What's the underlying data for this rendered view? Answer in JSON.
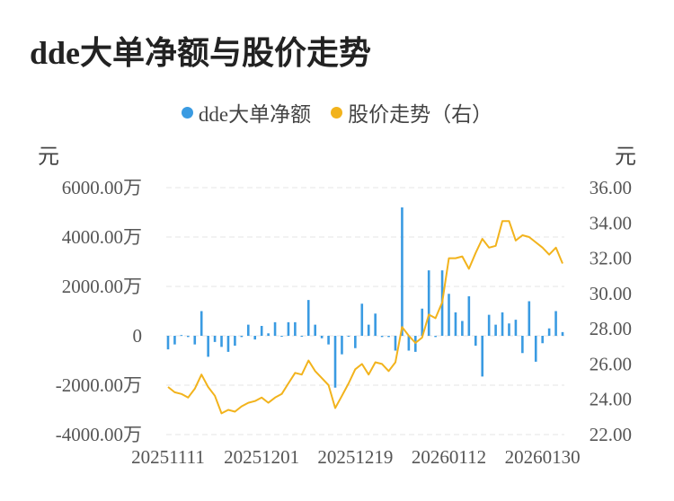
{
  "title": "dde大单净额与股价走势",
  "chart_data": {
    "type": "bar+line",
    "legend_position": "top",
    "grid": true,
    "colors": {
      "dde": "#3a9be2",
      "price": "#f2b31c",
      "grid": "#e4e4e4"
    },
    "left_axis": {
      "unit": "元",
      "ylim": [
        -4000,
        6000
      ],
      "ticks": [
        6000,
        4000,
        2000,
        0,
        -2000,
        -4000
      ],
      "tick_labels": [
        "6000.00万",
        "4000.00万",
        "2000.00万",
        "0",
        "-2000.00万",
        "-4000.00万"
      ]
    },
    "right_axis": {
      "unit": "元",
      "ylim": [
        22,
        36
      ],
      "ticks": [
        36,
        34,
        32,
        30,
        28,
        26,
        24,
        22
      ],
      "tick_labels": [
        "36.00",
        "34.00",
        "32.00",
        "30.00",
        "28.00",
        "26.00",
        "24.00",
        "22.00"
      ]
    },
    "x_tick_labels": [
      "20251111",
      "20251201",
      "20251219",
      "20260112",
      "20260130"
    ],
    "x_tick_indices": [
      0,
      14,
      28,
      42,
      56
    ],
    "series": [
      {
        "name": "dde大单净额",
        "type": "bar",
        "values": [
          -550,
          -350,
          30,
          -50,
          -350,
          1000,
          -850,
          -250,
          -450,
          -650,
          -400,
          -50,
          450,
          -150,
          400,
          100,
          550,
          0,
          550,
          550,
          0,
          1450,
          450,
          -100,
          -350,
          -2100,
          -750,
          0,
          -500,
          1300,
          450,
          900,
          -50,
          -50,
          -600,
          5200,
          -600,
          -650,
          1100,
          2650,
          -50,
          2650,
          1700,
          950,
          600,
          1600,
          -400,
          -1650,
          850,
          450,
          950,
          500,
          650,
          -700,
          1400,
          -1050,
          -300,
          300,
          1000,
          150
        ]
      },
      {
        "name": "股价走势（右）",
        "type": "line",
        "axis": "right",
        "values": [
          24.7,
          24.4,
          24.3,
          24.1,
          24.6,
          25.4,
          24.7,
          24.2,
          23.2,
          23.4,
          23.3,
          23.6,
          23.8,
          23.9,
          24.1,
          23.8,
          24.1,
          24.3,
          24.9,
          25.5,
          25.4,
          26.2,
          25.6,
          25.2,
          24.8,
          23.5,
          24.2,
          24.9,
          25.7,
          26.0,
          25.4,
          26.1,
          26.0,
          25.6,
          26.1,
          28.1,
          27.6,
          27.2,
          27.5,
          28.8,
          28.6,
          29.5,
          32.0,
          32.0,
          32.1,
          31.4,
          32.3,
          33.1,
          32.6,
          32.7,
          34.1,
          34.1,
          33.0,
          33.3,
          33.2,
          32.9,
          32.6,
          32.2,
          32.6,
          31.7
        ]
      }
    ]
  }
}
